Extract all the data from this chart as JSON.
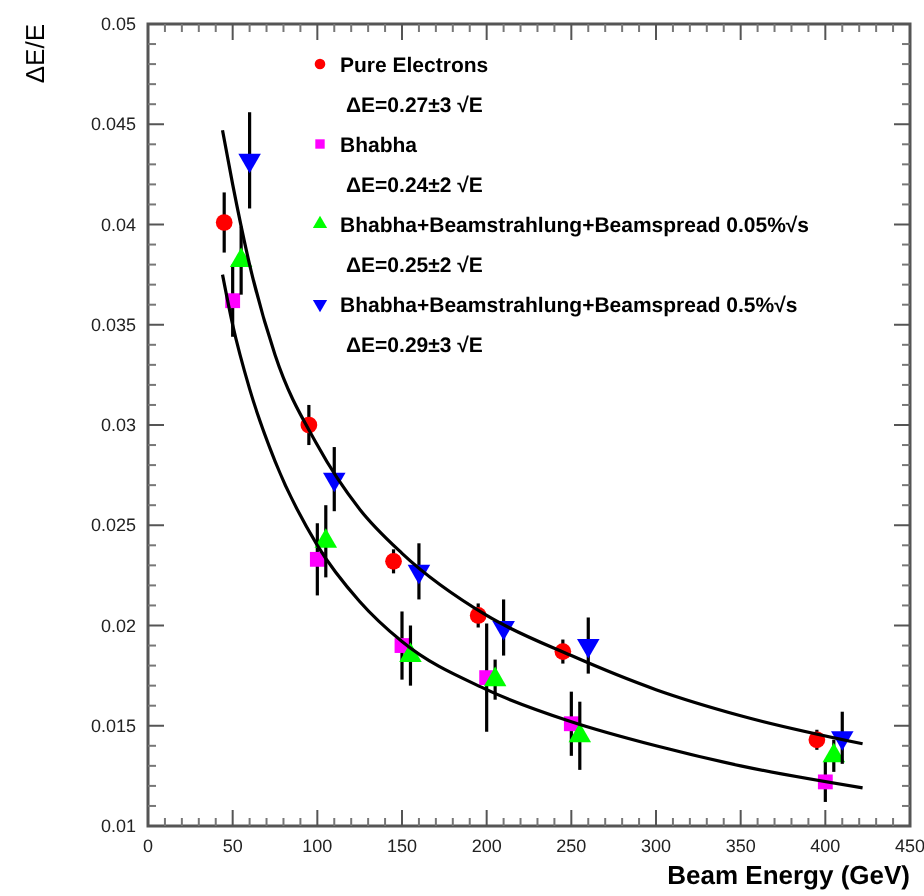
{
  "chart_data": {
    "type": "scatter",
    "xlabel": "Beam Energy (GeV)",
    "ylabel": "ΔE/E",
    "xlim": [
      0,
      450
    ],
    "xticks": [
      0,
      50,
      100,
      150,
      200,
      250,
      300,
      350,
      400,
      450
    ],
    "ylim": [
      0.01,
      0.05
    ],
    "yticks": [
      0.01,
      0.015,
      0.02,
      0.025,
      0.03,
      0.035,
      0.04,
      0.045,
      0.05
    ],
    "grid": false,
    "legend": "top right",
    "annotations": [
      "ΔE=0.27±3 √E",
      "ΔE=0.24±2 √E",
      "ΔE=0.25±2 √E",
      "ΔE=0.29±3 √E"
    ],
    "series": [
      {
        "name": "Pure Electrons",
        "marker": "circle",
        "color": "#ff0000",
        "x": [
          45,
          95,
          145,
          195,
          245,
          395
        ],
        "values": [
          0.0401,
          0.03,
          0.0232,
          0.0205,
          0.0187,
          0.0143
        ],
        "errors": [
          0.0015,
          0.001,
          0.0006,
          0.0006,
          0.0006,
          0.0005
        ]
      },
      {
        "name": "Bhabha",
        "marker": "square",
        "color": "#ff00ff",
        "x": [
          50,
          100,
          150,
          200,
          250,
          400
        ],
        "values": [
          0.0362,
          0.0233,
          0.019,
          0.0174,
          0.0151,
          0.0122
        ],
        "errors": [
          0.0018,
          0.0018,
          0.0017,
          0.0027,
          0.0016,
          0.001
        ]
      },
      {
        "name": "Bhabha+Beamstrahlung+Beamspread 0.05%√s",
        "marker": "triangle",
        "color": "#00ff00",
        "x": [
          55,
          105,
          155,
          205,
          255,
          405
        ],
        "values": [
          0.0382,
          0.0242,
          0.0185,
          0.0173,
          0.0145,
          0.0135
        ],
        "errors": [
          0.0017,
          0.0018,
          0.0015,
          0.001,
          0.0017,
          0.0008
        ]
      },
      {
        "name": "Bhabha+Beamstrahlung+Beamspread  0.5%√s",
        "marker": "triangle-down",
        "color": "#0000ff",
        "x": [
          60,
          110,
          160,
          210,
          260,
          410
        ],
        "values": [
          0.0432,
          0.0273,
          0.0227,
          0.0199,
          0.019,
          0.0144
        ],
        "errors": [
          0.0024,
          0.0016,
          0.0014,
          0.0014,
          0.0014,
          0.0013
        ]
      },
      {
        "type": "line",
        "marker": "none",
        "color": "#000000",
        "x": [
          44,
          50,
          60,
          75,
          100,
          125,
          150,
          200,
          250,
          300,
          350,
          422
        ],
        "values": [
          0.0447,
          0.042,
          0.038,
          0.0335,
          0.029,
          0.0258,
          0.0236,
          0.0205,
          0.0185,
          0.0168,
          0.0155,
          0.0141
        ]
      },
      {
        "type": "line",
        "marker": "none",
        "color": "#000000",
        "x": [
          44,
          50,
          60,
          75,
          100,
          125,
          150,
          200,
          250,
          300,
          350,
          422
        ],
        "values": [
          0.0375,
          0.035,
          0.0318,
          0.0282,
          0.024,
          0.0212,
          0.0192,
          0.0168,
          0.0152,
          0.014,
          0.013,
          0.0119
        ]
      }
    ]
  }
}
